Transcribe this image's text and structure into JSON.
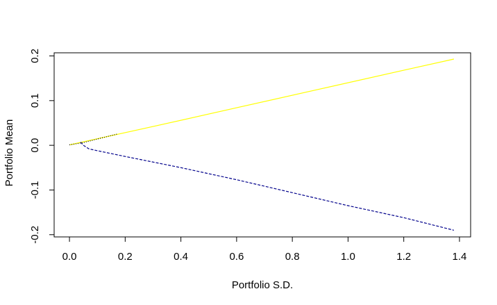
{
  "chart_data": {
    "type": "line",
    "title": "",
    "xlabel": "Portfolio S.D.",
    "ylabel": "Portfolio Mean",
    "xlim": [
      -0.055,
      1.44
    ],
    "ylim": [
      -0.205,
      0.207
    ],
    "x_ticks": [
      0.0,
      0.2,
      0.4,
      0.6,
      0.8,
      1.0,
      1.2,
      1.4
    ],
    "x_tick_labels": [
      "0.0",
      "0.2",
      "0.4",
      "0.6",
      "0.8",
      "1.0",
      "1.2",
      "1.4"
    ],
    "y_ticks": [
      -0.2,
      -0.1,
      0.0,
      0.1,
      0.2
    ],
    "y_tick_labels": [
      "-0.2",
      "-0.1",
      "0.0",
      "0.1",
      "0.2"
    ],
    "grid": false,
    "legend": "none",
    "series": [
      {
        "color": "#ffff00",
        "style": "solid",
        "points": [
          [
            0.0,
            0.001
          ],
          [
            0.3,
            0.042
          ],
          [
            0.6,
            0.084
          ],
          [
            0.9,
            0.126
          ],
          [
            1.2,
            0.168
          ],
          [
            1.38,
            0.193
          ]
        ]
      },
      {
        "color": "#00008b",
        "style": "dashed",
        "points": [
          [
            0.04,
            0.007
          ],
          [
            0.05,
            0.0
          ],
          [
            0.07,
            -0.008
          ],
          [
            0.1,
            -0.012
          ],
          [
            0.2,
            -0.025
          ],
          [
            0.4,
            -0.05
          ],
          [
            0.6,
            -0.077
          ],
          [
            0.8,
            -0.106
          ],
          [
            1.0,
            -0.135
          ],
          [
            1.2,
            -0.162
          ],
          [
            1.38,
            -0.19
          ]
        ]
      },
      {
        "color": "#000000",
        "style": "dotted",
        "points": [
          [
            0.0,
            0.001
          ],
          [
            0.05,
            0.006
          ],
          [
            0.1,
            0.014
          ],
          [
            0.15,
            0.022
          ],
          [
            0.17,
            0.025
          ]
        ]
      }
    ]
  }
}
